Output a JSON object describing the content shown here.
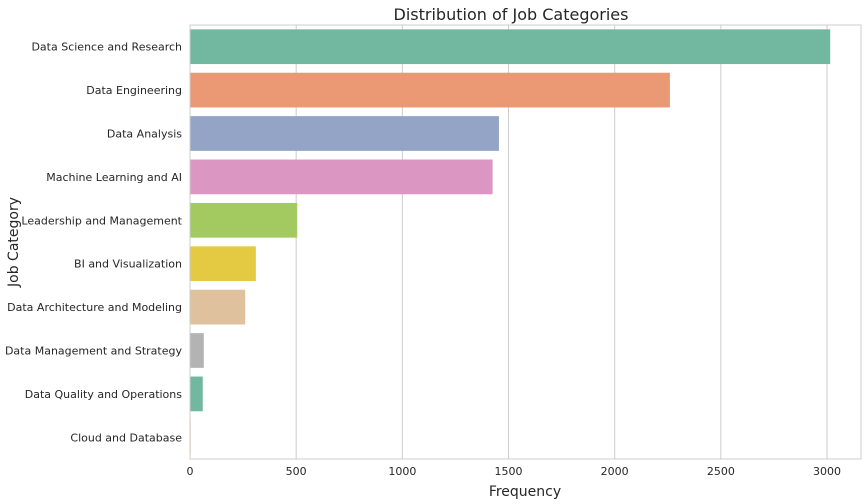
{
  "chart_data": {
    "type": "bar",
    "orientation": "horizontal",
    "title": "Distribution of Job Categories",
    "xlabel": "Frequency",
    "ylabel": "Job Category",
    "xlim": [
      0,
      3160
    ],
    "xticks": [
      0,
      500,
      1000,
      1500,
      2000,
      2500,
      3000
    ],
    "grid": "vertical",
    "categories": [
      "Data Science and Research",
      "Data Engineering",
      "Data Analysis",
      "Machine Learning and AI",
      "Leadership and Management",
      "BI and Visualization",
      "Data Architecture and Modeling",
      "Data Management and Strategy",
      "Data Quality and Operations",
      "Cloud and Database"
    ],
    "values": [
      3015,
      2260,
      1455,
      1425,
      505,
      310,
      260,
      65,
      60,
      3
    ],
    "colors": [
      "#72b8a0",
      "#eb9874",
      "#93a4c6",
      "#dc96c2",
      "#a2ca61",
      "#e4c943",
      "#dfc29d",
      "#b3b3b3",
      "#72b8a0",
      "#eb9874"
    ]
  }
}
